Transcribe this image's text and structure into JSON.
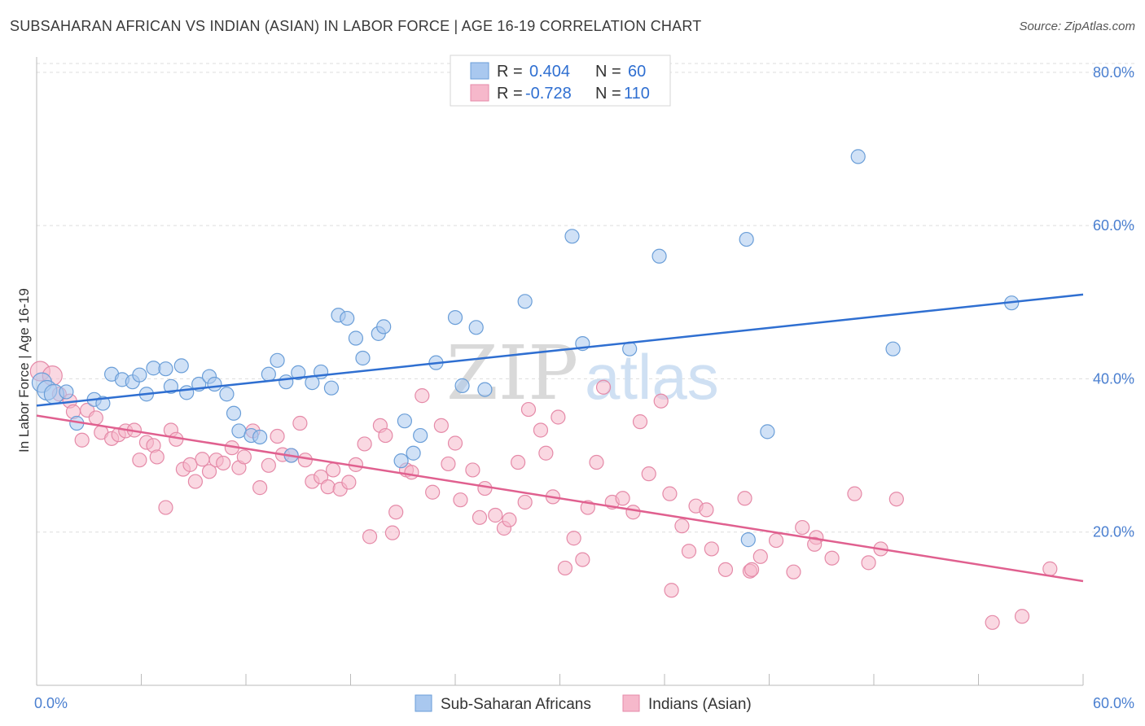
{
  "title": "SUBSAHARAN AFRICAN VS INDIAN (ASIAN) IN LABOR FORCE | AGE 16-19 CORRELATION CHART",
  "source": "Source: ZipAtlas.com",
  "watermark": {
    "zip": "ZIP",
    "atlas": "atlas"
  },
  "chart_data": {
    "type": "scatter",
    "ylabel": "In Labor Force | Age 16-19",
    "xlim": [
      0,
      60
    ],
    "ylim": [
      0,
      82
    ],
    "x_tick_labels": [
      "0.0%",
      "60.0%"
    ],
    "x_ticks": [
      0,
      6,
      12,
      18,
      24,
      30,
      36,
      42,
      48,
      54,
      60
    ],
    "y_ticks": [
      20,
      40,
      60,
      80
    ],
    "y_tick_labels": [
      "20.0%",
      "40.0%",
      "60.0%",
      "80.0%"
    ],
    "legend": {
      "rows": [
        {
          "r_label": "R =",
          "r_value": "0.404",
          "n_label": "N =",
          "n_value": "60",
          "color": "#a9c8ef"
        },
        {
          "r_label": "R =",
          "r_value": "-0.728",
          "n_label": "N =",
          "n_value": "110",
          "color": "#f6b8cb"
        }
      ]
    },
    "series": [
      {
        "name": "Sub-Saharan Africans",
        "color": "#a9c8ef",
        "stroke": "#6a9ed8",
        "line_color": "#2f6fd1",
        "trend": [
          [
            0,
            36.5
          ],
          [
            60,
            51
          ]
        ],
        "points": [
          [
            0.3,
            39.5
          ],
          [
            0.6,
            38.5
          ],
          [
            1.0,
            38.0
          ],
          [
            1.7,
            38.3
          ],
          [
            2.3,
            34.2
          ],
          [
            3.3,
            37.3
          ],
          [
            3.8,
            36.8
          ],
          [
            4.3,
            40.6
          ],
          [
            4.9,
            39.9
          ],
          [
            5.5,
            39.6
          ],
          [
            5.9,
            40.5
          ],
          [
            6.3,
            38.0
          ],
          [
            6.7,
            41.4
          ],
          [
            7.4,
            41.3
          ],
          [
            7.7,
            39.0
          ],
          [
            8.3,
            41.7
          ],
          [
            8.6,
            38.2
          ],
          [
            9.3,
            39.3
          ],
          [
            9.9,
            40.3
          ],
          [
            10.2,
            39.3
          ],
          [
            10.9,
            38.0
          ],
          [
            11.3,
            35.5
          ],
          [
            11.6,
            33.2
          ],
          [
            12.3,
            32.6
          ],
          [
            12.8,
            32.4
          ],
          [
            13.3,
            40.6
          ],
          [
            13.8,
            42.4
          ],
          [
            14.3,
            39.6
          ],
          [
            14.6,
            30.0
          ],
          [
            15.0,
            40.8
          ],
          [
            15.8,
            39.5
          ],
          [
            16.3,
            40.9
          ],
          [
            16.9,
            38.8
          ],
          [
            17.3,
            48.3
          ],
          [
            17.8,
            47.9
          ],
          [
            18.3,
            45.3
          ],
          [
            18.7,
            42.7
          ],
          [
            19.6,
            45.9
          ],
          [
            19.9,
            46.8
          ],
          [
            20.9,
            29.3
          ],
          [
            21.1,
            34.5
          ],
          [
            21.6,
            30.3
          ],
          [
            22.0,
            32.6
          ],
          [
            22.9,
            42.1
          ],
          [
            24.0,
            48.0
          ],
          [
            24.4,
            39.1
          ],
          [
            25.2,
            46.7
          ],
          [
            25.7,
            38.6
          ],
          [
            28.0,
            50.1
          ],
          [
            30.7,
            58.6
          ],
          [
            31.3,
            44.6
          ],
          [
            34.0,
            43.9
          ],
          [
            35.7,
            56.0
          ],
          [
            40.7,
            58.2
          ],
          [
            40.8,
            19.0
          ],
          [
            41.9,
            33.1
          ],
          [
            47.1,
            69.0
          ],
          [
            49.1,
            43.9
          ],
          [
            55.9,
            49.9
          ]
        ]
      },
      {
        "name": "Indians (Asian)",
        "color": "#f6b8cb",
        "stroke": "#e58aa8",
        "line_color": "#e0608f",
        "trend": [
          [
            0,
            35.2
          ],
          [
            60,
            13.6
          ]
        ],
        "points": [
          [
            0.2,
            41.0
          ],
          [
            0.9,
            40.4
          ],
          [
            1.3,
            38.0
          ],
          [
            1.9,
            37.1
          ],
          [
            2.1,
            35.7
          ],
          [
            2.6,
            32.0
          ],
          [
            2.9,
            35.9
          ],
          [
            3.4,
            34.9
          ],
          [
            3.7,
            33.0
          ],
          [
            4.3,
            32.2
          ],
          [
            4.7,
            32.7
          ],
          [
            5.1,
            33.2
          ],
          [
            5.6,
            33.3
          ],
          [
            5.9,
            29.4
          ],
          [
            6.3,
            31.7
          ],
          [
            6.7,
            31.3
          ],
          [
            6.9,
            29.8
          ],
          [
            7.4,
            23.2
          ],
          [
            7.7,
            33.3
          ],
          [
            8.0,
            32.1
          ],
          [
            8.4,
            28.2
          ],
          [
            8.8,
            28.8
          ],
          [
            9.1,
            26.6
          ],
          [
            9.5,
            29.5
          ],
          [
            9.9,
            27.9
          ],
          [
            10.3,
            29.4
          ],
          [
            10.7,
            29.0
          ],
          [
            11.2,
            31.0
          ],
          [
            11.6,
            28.4
          ],
          [
            11.9,
            29.8
          ],
          [
            12.4,
            33.2
          ],
          [
            12.8,
            25.8
          ],
          [
            13.3,
            28.7
          ],
          [
            13.8,
            32.5
          ],
          [
            14.1,
            30.1
          ],
          [
            14.6,
            30.0
          ],
          [
            15.1,
            34.2
          ],
          [
            15.4,
            29.4
          ],
          [
            15.8,
            26.6
          ],
          [
            16.3,
            27.2
          ],
          [
            16.7,
            25.9
          ],
          [
            17.0,
            28.1
          ],
          [
            17.4,
            25.6
          ],
          [
            17.9,
            26.5
          ],
          [
            18.3,
            28.8
          ],
          [
            18.8,
            31.5
          ],
          [
            19.1,
            19.4
          ],
          [
            19.7,
            33.9
          ],
          [
            20.0,
            32.6
          ],
          [
            20.4,
            19.9
          ],
          [
            20.6,
            22.6
          ],
          [
            21.2,
            28.1
          ],
          [
            21.5,
            27.8
          ],
          [
            22.1,
            37.8
          ],
          [
            22.7,
            25.2
          ],
          [
            23.2,
            33.9
          ],
          [
            23.6,
            28.9
          ],
          [
            24.0,
            31.6
          ],
          [
            24.3,
            24.2
          ],
          [
            25.0,
            28.1
          ],
          [
            25.4,
            21.9
          ],
          [
            25.7,
            25.7
          ],
          [
            26.3,
            22.2
          ],
          [
            26.8,
            20.5
          ],
          [
            27.1,
            21.6
          ],
          [
            27.6,
            29.1
          ],
          [
            28.0,
            23.9
          ],
          [
            28.2,
            36.0
          ],
          [
            28.9,
            33.3
          ],
          [
            29.2,
            30.3
          ],
          [
            29.6,
            24.6
          ],
          [
            29.9,
            35.0
          ],
          [
            30.3,
            15.3
          ],
          [
            30.8,
            19.2
          ],
          [
            31.3,
            16.4
          ],
          [
            31.6,
            23.2
          ],
          [
            32.1,
            29.1
          ],
          [
            32.5,
            38.9
          ],
          [
            33.0,
            23.9
          ],
          [
            33.6,
            24.4
          ],
          [
            34.2,
            22.6
          ],
          [
            34.6,
            34.4
          ],
          [
            35.1,
            27.6
          ],
          [
            35.8,
            37.1
          ],
          [
            36.4,
            12.4
          ],
          [
            37.0,
            20.8
          ],
          [
            37.4,
            17.5
          ],
          [
            37.8,
            23.4
          ],
          [
            38.4,
            22.9
          ],
          [
            38.7,
            17.8
          ],
          [
            39.5,
            15.1
          ],
          [
            40.6,
            24.4
          ],
          [
            40.9,
            14.9
          ],
          [
            41.5,
            16.8
          ],
          [
            42.4,
            18.9
          ],
          [
            43.4,
            14.8
          ],
          [
            43.9,
            20.6
          ],
          [
            44.7,
            19.3
          ],
          [
            45.6,
            16.6
          ],
          [
            46.9,
            25.0
          ],
          [
            47.7,
            16.0
          ],
          [
            48.4,
            17.8
          ],
          [
            49.3,
            24.3
          ],
          [
            54.8,
            8.2
          ],
          [
            56.5,
            9.0
          ],
          [
            58.1,
            15.2
          ],
          [
            44.6,
            18.4
          ],
          [
            41.0,
            15.1
          ],
          [
            36.3,
            25.0
          ]
        ]
      }
    ]
  }
}
